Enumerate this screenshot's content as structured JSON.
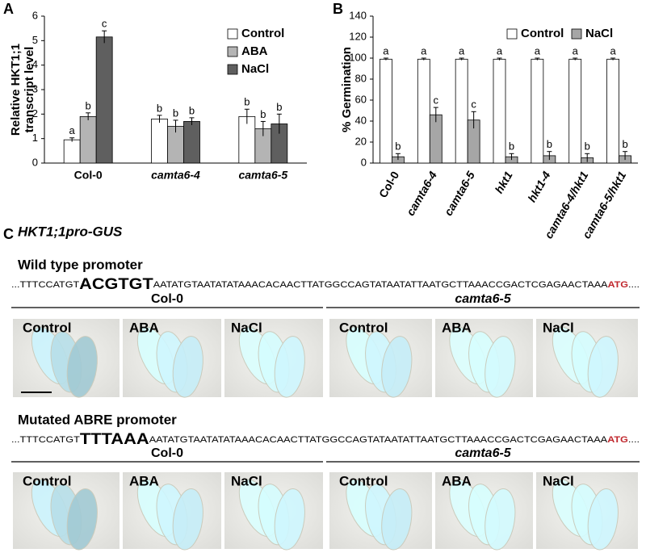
{
  "chart_data": [
    {
      "type": "bar",
      "panel": "A",
      "y_label": [
        "Relative HKT1;1",
        "transcript level"
      ],
      "categories": [
        "Col-0",
        "camta6-4",
        "camta6-5"
      ],
      "series": [
        {
          "name": "Control",
          "color": "#ffffff",
          "values": [
            0.95,
            1.8,
            1.9
          ],
          "errors": [
            0.08,
            0.15,
            0.3
          ],
          "letters": [
            "a",
            "b",
            "b"
          ]
        },
        {
          "name": "ABA",
          "color": "#b4b4b4",
          "values": [
            1.9,
            1.5,
            1.4
          ],
          "errors": [
            0.15,
            0.25,
            0.3
          ],
          "letters": [
            "b",
            "b",
            "b"
          ]
        },
        {
          "name": "NaCl",
          "color": "#5f5f5f",
          "values": [
            5.15,
            1.7,
            1.6
          ],
          "errors": [
            0.25,
            0.15,
            0.4
          ],
          "letters": [
            "c",
            "b",
            "b"
          ]
        }
      ],
      "ylim": [
        0,
        6
      ],
      "yticks": [
        0,
        1,
        2,
        3,
        4,
        5,
        6
      ]
    },
    {
      "type": "bar",
      "panel": "B",
      "y_label": [
        "% Germination"
      ],
      "categories": [
        "Col-0",
        "camta6-4",
        "camta6-5",
        "hkt1",
        "hkt1-4",
        "camta6-4/hkt1",
        "camta6-5/hkt1"
      ],
      "series": [
        {
          "name": "Control",
          "color": "#ffffff",
          "values": [
            99,
            99,
            99,
            99,
            99,
            99,
            99
          ],
          "errors": [
            1,
            1,
            1,
            1,
            1,
            1,
            1
          ],
          "letters": [
            "a",
            "a",
            "a",
            "a",
            "a",
            "a",
            "a"
          ]
        },
        {
          "name": "NaCl",
          "color": "#a6a6a6",
          "values": [
            6,
            46,
            41,
            6,
            7,
            5,
            7
          ],
          "errors": [
            3,
            7,
            8,
            3,
            4,
            4,
            4
          ],
          "letters": [
            "b",
            "c",
            "c",
            "b",
            "b",
            "b",
            "b"
          ]
        }
      ],
      "ylim": [
        0,
        140
      ],
      "yticks": [
        0,
        20,
        40,
        60,
        80,
        100,
        120,
        140
      ]
    }
  ],
  "panel_c": {
    "label": "C",
    "construct": "HKT1;1pro-GUS",
    "rows": [
      {
        "title": "Wild type promoter",
        "sequence": [
          "...TTTCCATGT",
          "ACGTGT",
          "AATATGTAATATATAAACACAACTTATGGCCAGTATAATATTAATGCTTAAACCGACTCGAGAACTAAA",
          "ATG",
          "...."
        ]
      },
      {
        "title": "Mutated ABRE promoter",
        "sequence": [
          "...TTTCCATGT",
          "TTTAAA",
          "AATATGTAATATATAAACACAACTTATGGCCAGTATAATATTAATGCTTAAACCGACTCGAGAACTAAA",
          "ATG",
          "...."
        ]
      }
    ],
    "genotypes": [
      "Col-0",
      "camta6-5"
    ],
    "treatments": [
      "Control",
      "ABA",
      "NaCl"
    ]
  }
}
